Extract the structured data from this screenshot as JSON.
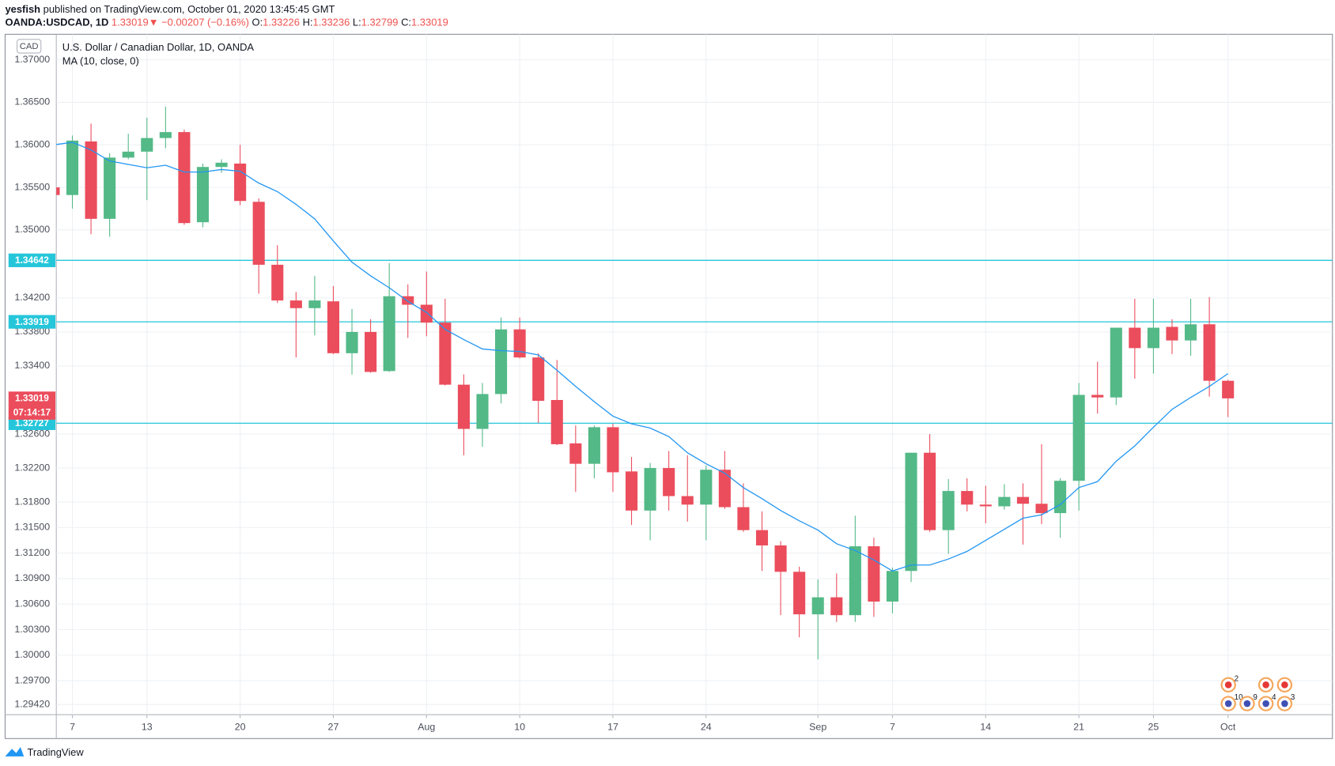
{
  "header": {
    "author": "yesfish",
    "published": "published on TradingView.com, October 01, 2020 13:45:45 GMT",
    "symbol": "OANDA:USDCAD, 1D",
    "last": "1.33019",
    "arrow": "▼",
    "change": "−0.00207 (−0.16%)",
    "ohlc": [
      {
        "key": "O:",
        "value": "1.33226"
      },
      {
        "key": "H:",
        "value": "1.33236"
      },
      {
        "key": "L:",
        "value": "1.32799"
      },
      {
        "key": "C:",
        "value": "1.33019"
      }
    ]
  },
  "footer": "TradingView",
  "chart_data": {
    "type": "candlestick",
    "title": "U.S. Dollar / Canadian Dollar, 1D, OANDA",
    "currency": "CAD",
    "categories": [
      null,
      "7",
      null,
      null,
      null,
      "13",
      null,
      null,
      null,
      null,
      "20",
      null,
      null,
      null,
      null,
      "27",
      null,
      null,
      null,
      null,
      "Aug",
      null,
      null,
      null,
      null,
      "10",
      null,
      null,
      null,
      null,
      "17",
      null,
      null,
      null,
      null,
      "24",
      null,
      null,
      null,
      null,
      null,
      "Sep",
      null,
      null,
      null,
      "7",
      null,
      null,
      null,
      null,
      "14",
      null,
      null,
      null,
      null,
      "21",
      null,
      null,
      null,
      "25",
      null,
      null,
      null,
      "Oct"
    ],
    "open": [
      1.355,
      1.3541,
      1.3604,
      1.3513,
      1.3585,
      1.3592,
      1.3608,
      1.3615,
      1.3509,
      1.3574,
      1.3578,
      1.3533,
      1.3459,
      1.3417,
      1.3408,
      1.3416,
      1.3355,
      1.338,
      1.3334,
      1.3422,
      1.3412,
      1.3391,
      1.3318,
      1.3266,
      1.3307,
      1.3383,
      1.335,
      1.33,
      1.3249,
      1.3225,
      1.3268,
      1.3216,
      1.317,
      1.322,
      1.3187,
      1.3177,
      1.3218,
      1.3174,
      1.3147,
      1.3129,
      1.3098,
      1.3048,
      1.3068,
      1.3047,
      1.3128,
      1.3063,
      1.3099,
      1.3238,
      1.3147,
      1.3193,
      1.3177,
      1.3175,
      1.3186,
      1.3178,
      1.3167,
      1.3205,
      1.3306,
      1.3303,
      1.3385,
      1.3361,
      1.3386,
      1.337,
      1.3389,
      1.33226
    ],
    "high": [
      1.3553,
      1.3611,
      1.3625,
      1.359,
      1.3613,
      1.3632,
      1.3645,
      1.3618,
      1.3578,
      1.3583,
      1.36,
      1.3537,
      1.3482,
      1.3427,
      1.3446,
      1.3434,
      1.3407,
      1.3395,
      1.3461,
      1.3436,
      1.3451,
      1.3419,
      1.333,
      1.332,
      1.3397,
      1.3397,
      1.3355,
      1.3347,
      1.327,
      1.327,
      1.3272,
      1.3233,
      1.3226,
      1.324,
      1.3235,
      1.3223,
      1.324,
      1.3202,
      1.3169,
      1.3134,
      1.3104,
      1.3089,
      1.3096,
      1.3164,
      1.3138,
      1.3103,
      1.3238,
      1.326,
      1.3207,
      1.3208,
      1.3199,
      1.3201,
      1.3202,
      1.3248,
      1.3208,
      1.332,
      1.3345,
      1.3385,
      1.3419,
      1.3419,
      1.3395,
      1.3419,
      1.3421,
      1.33236
    ],
    "low": [
      1.3539,
      1.3525,
      1.3495,
      1.3492,
      1.3583,
      1.3535,
      1.3596,
      1.3506,
      1.3503,
      1.3567,
      1.3529,
      1.3425,
      1.3414,
      1.335,
      1.3376,
      1.3354,
      1.333,
      1.3332,
      1.3333,
      1.3373,
      1.3375,
      1.3317,
      1.3235,
      1.3245,
      1.3296,
      1.3349,
      1.3273,
      1.3247,
      1.3192,
      1.3208,
      1.3192,
      1.3153,
      1.3135,
      1.317,
      1.3157,
      1.3135,
      1.3172,
      1.3145,
      1.3099,
      1.3047,
      1.3021,
      1.2995,
      1.3039,
      1.3039,
      1.3045,
      1.3049,
      1.3086,
      1.3145,
      1.3119,
      1.3169,
      1.3155,
      1.3171,
      1.313,
      1.3154,
      1.3138,
      1.317,
      1.3284,
      1.3294,
      1.3325,
      1.3331,
      1.3354,
      1.3352,
      1.3304,
      1.32799
    ],
    "close": [
      1.3541,
      1.3605,
      1.3513,
      1.3585,
      1.3592,
      1.3608,
      1.3615,
      1.3508,
      1.3574,
      1.3579,
      1.3534,
      1.3459,
      1.3417,
      1.3408,
      1.3417,
      1.3355,
      1.338,
      1.3333,
      1.3422,
      1.3412,
      1.3391,
      1.3318,
      1.3266,
      1.3307,
      1.3383,
      1.335,
      1.3299,
      1.3248,
      1.3225,
      1.3268,
      1.3215,
      1.317,
      1.322,
      1.3187,
      1.3177,
      1.3218,
      1.3174,
      1.3147,
      1.3129,
      1.3098,
      1.3048,
      1.3068,
      1.3047,
      1.3128,
      1.3063,
      1.3099,
      1.3238,
      1.3147,
      1.3193,
      1.3177,
      1.3175,
      1.3186,
      1.3178,
      1.3167,
      1.3205,
      1.3306,
      1.3303,
      1.3385,
      1.3361,
      1.3385,
      1.337,
      1.3389,
      1.33226,
      1.33019
    ],
    "up_color": "#53b987",
    "down_color": "#eb4d5c",
    "ma": {
      "name": "MA (10, close, 0)",
      "color": "#2196f3",
      "values": [
        1.36,
        1.3603,
        1.3594,
        1.3581,
        1.3577,
        1.3573,
        1.3576,
        1.3568,
        1.3568,
        1.3571,
        1.3569,
        1.3555,
        1.3545,
        1.353,
        1.3513,
        1.3487,
        1.3462,
        1.3446,
        1.3432,
        1.3416,
        1.3403,
        1.3383,
        1.3371,
        1.336,
        1.3358,
        1.3357,
        1.3353,
        1.3335,
        1.3316,
        1.3298,
        1.3281,
        1.3272,
        1.3267,
        1.3257,
        1.3238,
        1.3225,
        1.3214,
        1.3197,
        1.3184,
        1.317,
        1.3158,
        1.3147,
        1.3131,
        1.3123,
        1.3112,
        1.3099,
        1.3106,
        1.3106,
        1.3113,
        1.3122,
        1.3135,
        1.3148,
        1.3161,
        1.3165,
        1.3177,
        1.3197,
        1.3204,
        1.3228,
        1.3246,
        1.3268,
        1.3289,
        1.3303,
        1.3316,
        1.3331
      ]
    },
    "ylim": [
      1.293,
      1.373
    ],
    "yticks": [
      {
        "value": 1.37,
        "label": "1.37000"
      },
      {
        "value": 1.365,
        "label": "1.36500"
      },
      {
        "value": 1.36,
        "label": "1.36000"
      },
      {
        "value": 1.355,
        "label": "1.35500"
      },
      {
        "value": 1.35,
        "label": "1.35000"
      },
      {
        "value": 1.342,
        "label": "1.34200"
      },
      {
        "value": 1.338,
        "label": "1.33800"
      },
      {
        "value": 1.334,
        "label": "1.33400"
      },
      {
        "value": 1.326,
        "label": "1.32600"
      },
      {
        "value": 1.322,
        "label": "1.32200"
      },
      {
        "value": 1.318,
        "label": "1.31800"
      },
      {
        "value": 1.315,
        "label": "1.31500"
      },
      {
        "value": 1.312,
        "label": "1.31200"
      },
      {
        "value": 1.309,
        "label": "1.30900"
      },
      {
        "value": 1.306,
        "label": "1.30600"
      },
      {
        "value": 1.303,
        "label": "1.30300"
      },
      {
        "value": 1.3,
        "label": "1.30000"
      },
      {
        "value": 1.297,
        "label": "1.29700"
      },
      {
        "value": 1.2942,
        "label": "1.29420"
      }
    ],
    "grid": true,
    "price_lines": [
      {
        "value": 1.34642,
        "label": "1.34642"
      },
      {
        "value": 1.33919,
        "label": "1.33919"
      },
      {
        "value": 1.32727,
        "label": "1.32727"
      }
    ],
    "price_line_color": "#26c6da",
    "last_price": {
      "value": 1.33019,
      "label": "1.33019"
    },
    "countdown": "07:14:17",
    "events": [
      "2",
      "10",
      "9",
      "4",
      "3"
    ]
  }
}
